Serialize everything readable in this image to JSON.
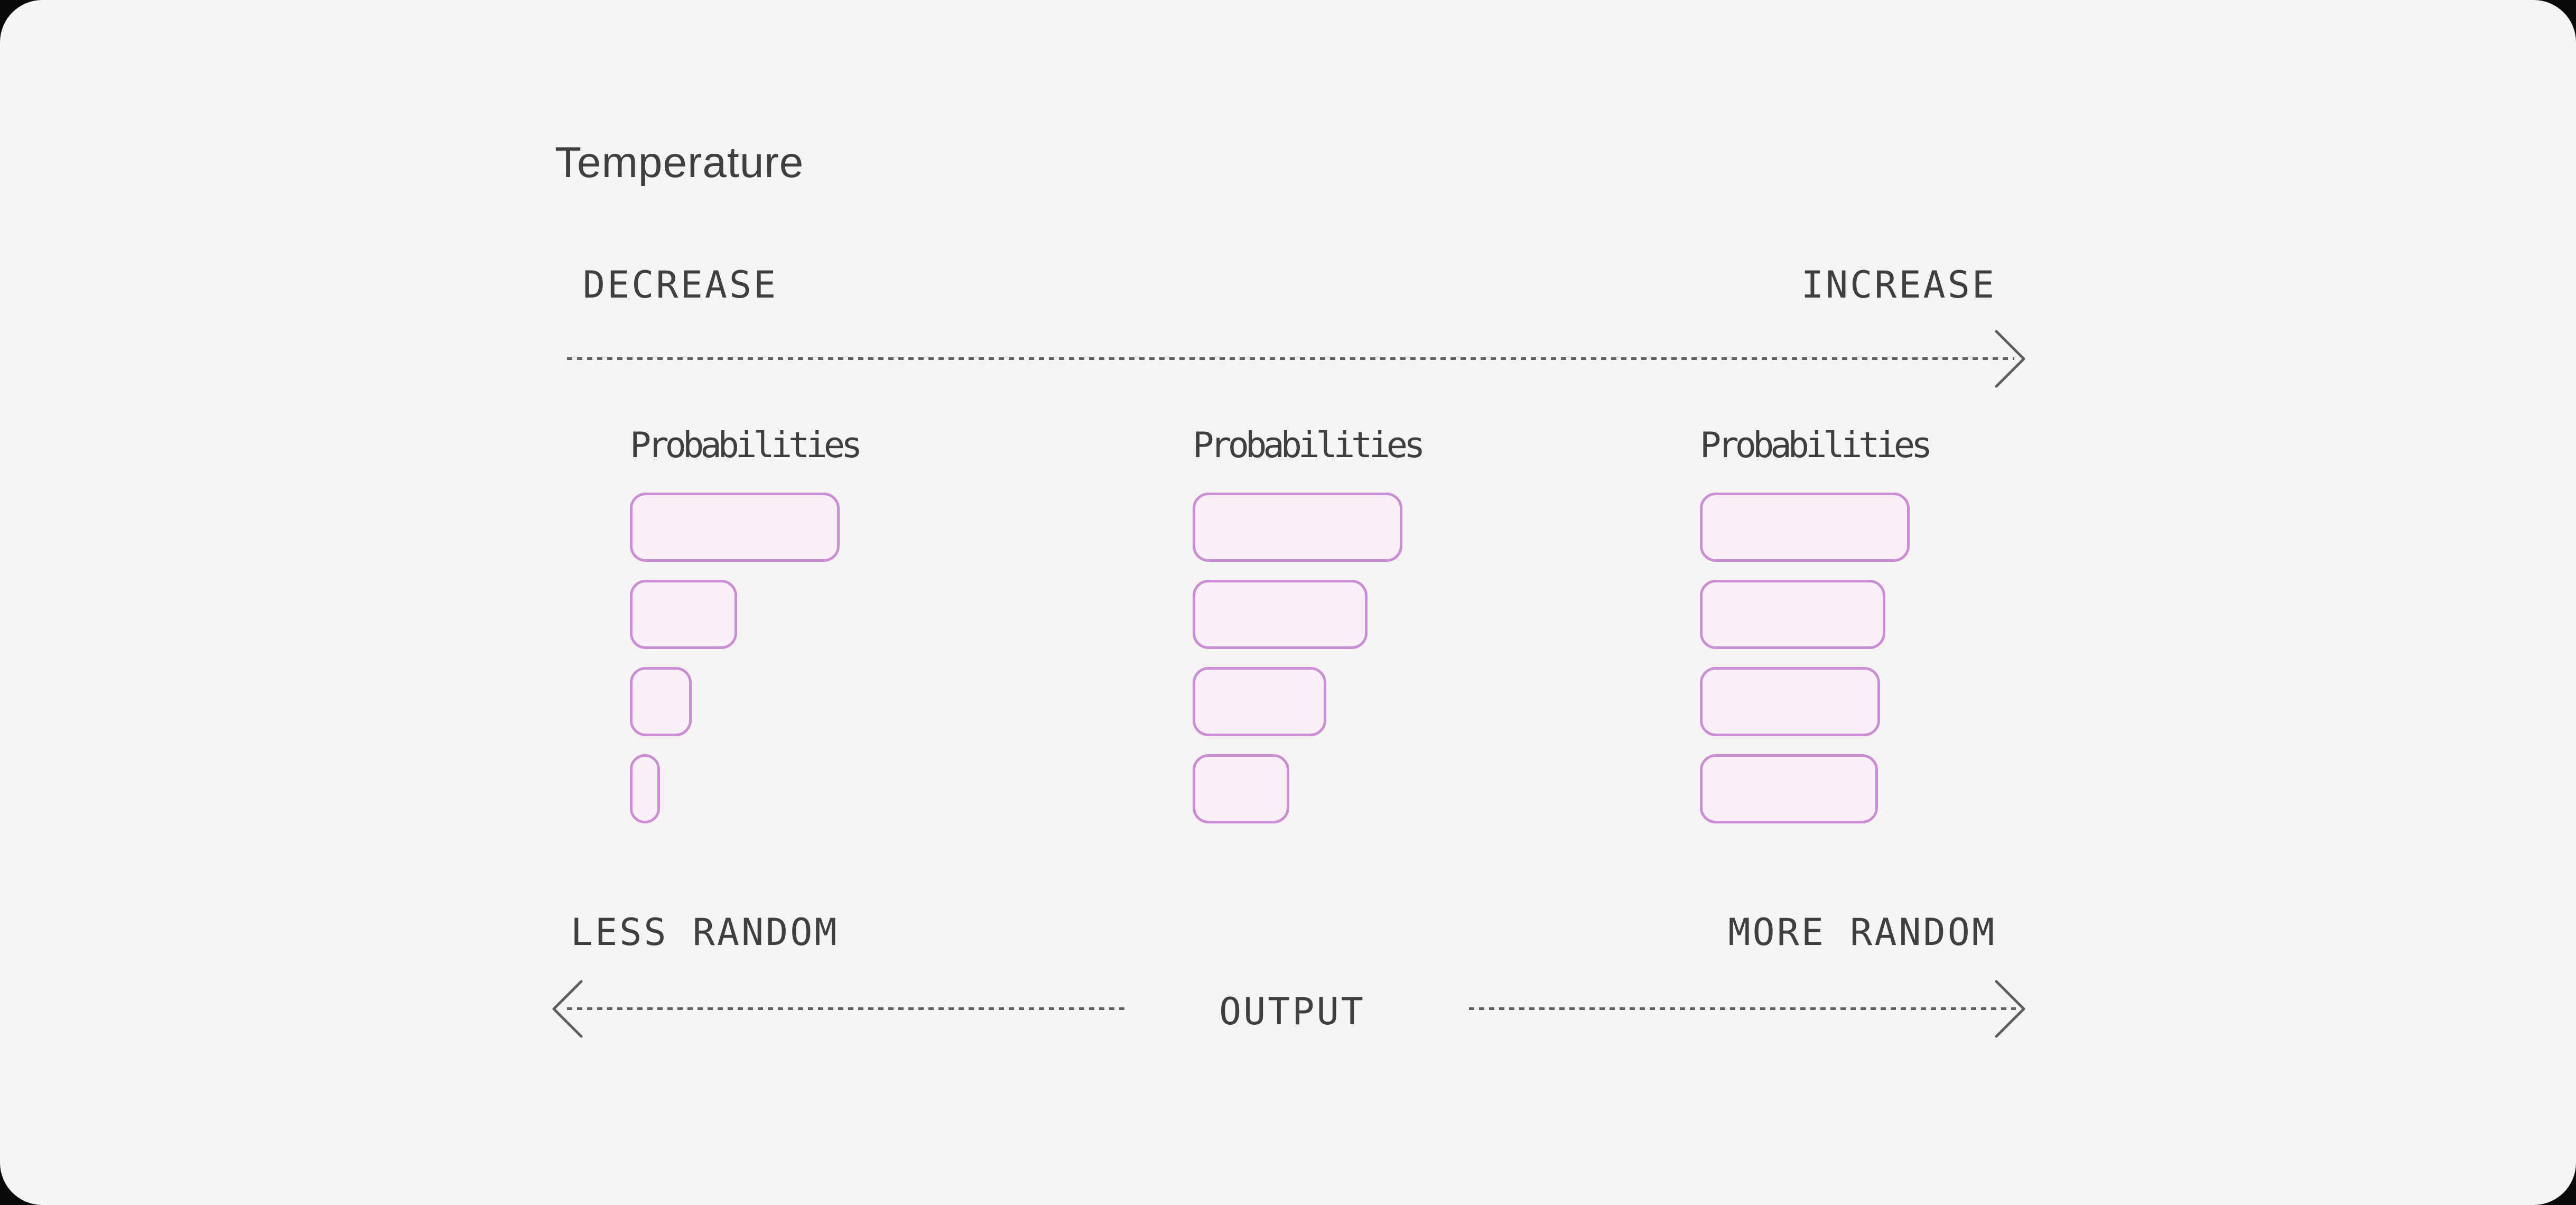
{
  "title": "Temperature",
  "top_axis": {
    "left_label": "DECREASE",
    "right_label": "INCREASE"
  },
  "groups": [
    {
      "label": "Probabilities",
      "bars": [
        397,
        203,
        117,
        57
      ]
    },
    {
      "label": "Probabilities",
      "bars": [
        397,
        331,
        253,
        183
      ]
    },
    {
      "label": "Probabilities",
      "bars": [
        397,
        351,
        341,
        337
      ]
    }
  ],
  "bottom_axis": {
    "left_label": "LESS RANDOM",
    "center_label": "OUTPUT",
    "right_label": "MORE RANDOM"
  },
  "colors": {
    "card_background": "#f5f4f2",
    "backdrop": "#0a0a0a",
    "text": "#3f3f3f",
    "line": "#5f5f5f",
    "bar_fill": "#f9eff9",
    "bar_border": "#cb8dd3"
  }
}
